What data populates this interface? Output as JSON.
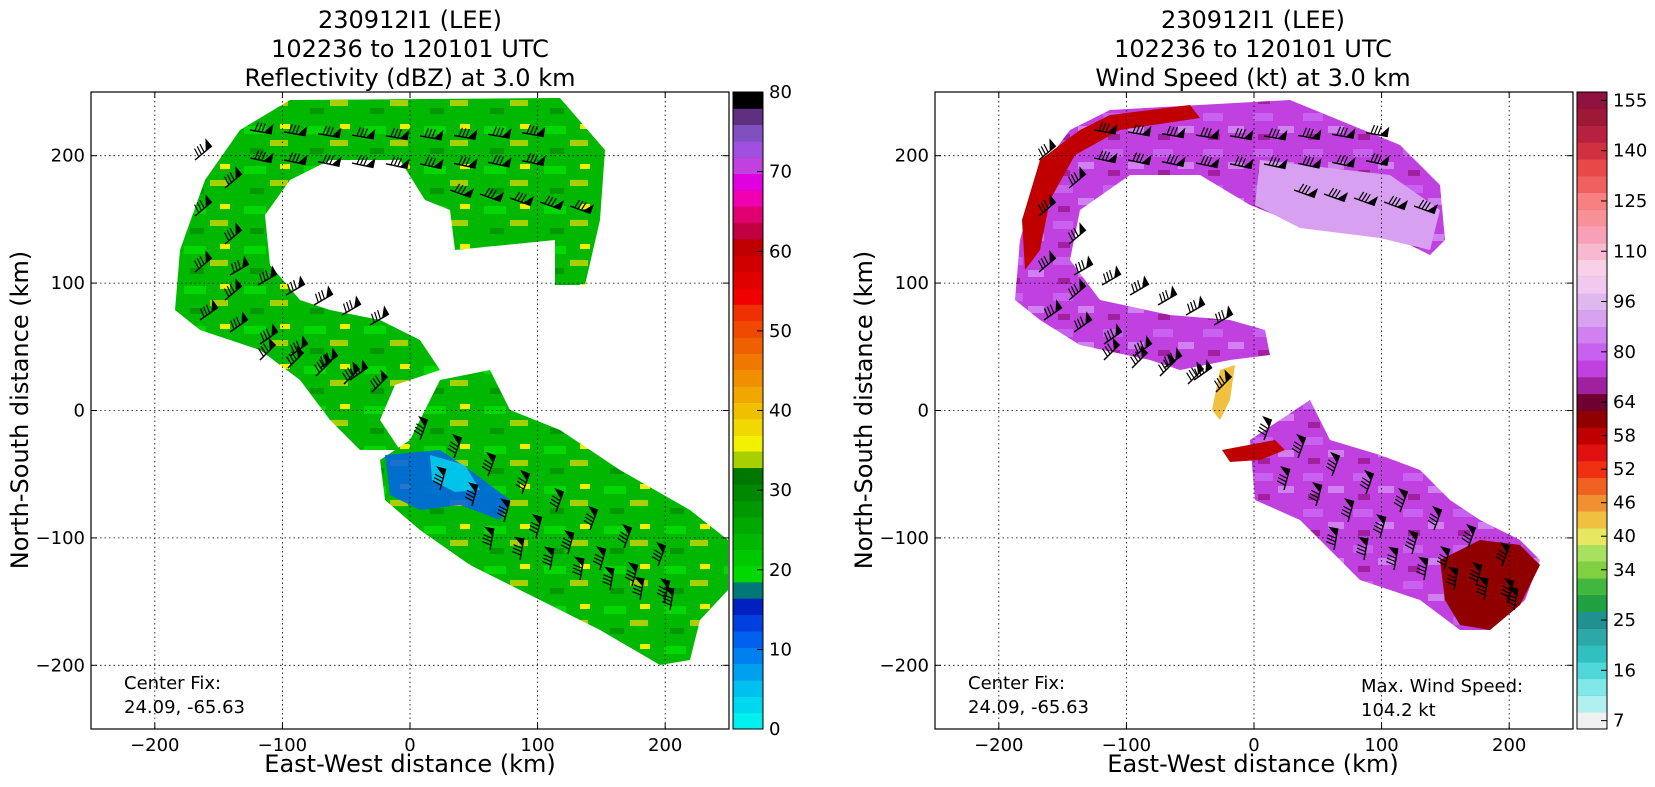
{
  "chart_data": [
    {
      "type": "heatmap",
      "title_lines": [
        "230912I1 (LEE)",
        "102236 to 120101 UTC",
        "Reflectivity (dBZ) at 3.0 km"
      ],
      "xlabel": "East-West distance (km)",
      "ylabel": "North-South distance (km)",
      "xlim": [
        -250,
        250
      ],
      "ylim": [
        -250,
        250
      ],
      "xticks": [
        -200,
        -100,
        0,
        100,
        200
      ],
      "yticks": [
        -200,
        -100,
        0,
        100,
        200
      ],
      "grid": true,
      "colorbar": {
        "min": 0,
        "max": 80,
        "step": 2.5,
        "ticks": [
          0,
          10,
          20,
          30,
          40,
          50,
          60,
          70,
          80
        ],
        "colors": [
          "#00f0f0",
          "#00d8f0",
          "#00c0f0",
          "#00a0f0",
          "#0080f0",
          "#0060f0",
          "#0040e0",
          "#0020c0",
          "#007878",
          "#00d800",
          "#00c800",
          "#00b800",
          "#00a800",
          "#009800",
          "#008800",
          "#007800",
          "#a8d000",
          "#f0f000",
          "#f0d800",
          "#f0c000",
          "#f0a800",
          "#f09000",
          "#f07800",
          "#f06000",
          "#f04800",
          "#f03000",
          "#f00000",
          "#e00000",
          "#d00000",
          "#c00000",
          "#c00040",
          "#e00070",
          "#f000b0",
          "#e000e0",
          "#c040e0",
          "#a050e0",
          "#8050c0",
          "#603080",
          "#000000"
        ]
      },
      "annotations": [
        {
          "lines": [
            "Center Fix:",
            "24.09, -65.63"
          ],
          "position": "bottom-left"
        }
      ]
    },
    {
      "type": "heatmap",
      "title_lines": [
        "230912I1 (LEE)",
        "102236 to 120101 UTC",
        "Wind Speed (kt) at 3.0 km"
      ],
      "xlabel": "East-West distance (km)",
      "ylabel": "North-South distance (km)",
      "xlim": [
        -250,
        250
      ],
      "ylim": [
        -250,
        250
      ],
      "xticks": [
        -200,
        -100,
        0,
        100,
        200
      ],
      "yticks": [
        -200,
        -100,
        0,
        100,
        200
      ],
      "grid": true,
      "colorbar": {
        "tick_labels": [
          "7",
          "16",
          "25",
          "34",
          "40",
          "46",
          "52",
          "58",
          "64",
          "80",
          "96",
          "110",
          "125",
          "140",
          "155"
        ],
        "tick_bins": [
          0,
          3,
          6,
          9,
          11,
          13,
          15,
          17,
          19,
          22,
          25,
          28,
          31,
          34,
          37
        ],
        "colors": [
          "#f0f0f0",
          "#b0f0f0",
          "#80e8e8",
          "#50d8d8",
          "#30c0c0",
          "#2ca8a8",
          "#209090",
          "#20a040",
          "#40b840",
          "#80d040",
          "#a8e060",
          "#e8e860",
          "#f0c040",
          "#f09030",
          "#f06020",
          "#f03010",
          "#e01010",
          "#c00000",
          "#900000",
          "#700030",
          "#a020a0",
          "#c040e0",
          "#c860f0",
          "#d080f0",
          "#d8a0f0",
          "#e0b8f0",
          "#f0c8f0",
          "#f8d0e8",
          "#f8b8d0",
          "#f8a0b8",
          "#f89098",
          "#f88080",
          "#f06060",
          "#e84848",
          "#d03040",
          "#b82040",
          "#a01838",
          "#901040"
        ]
      },
      "annotations": [
        {
          "lines": [
            "Center Fix:",
            "24.09, -65.63"
          ],
          "position": "bottom-left"
        },
        {
          "lines": [
            "Max. Wind Speed:",
            "104.2 kt"
          ],
          "position": "bottom-right"
        }
      ]
    }
  ]
}
